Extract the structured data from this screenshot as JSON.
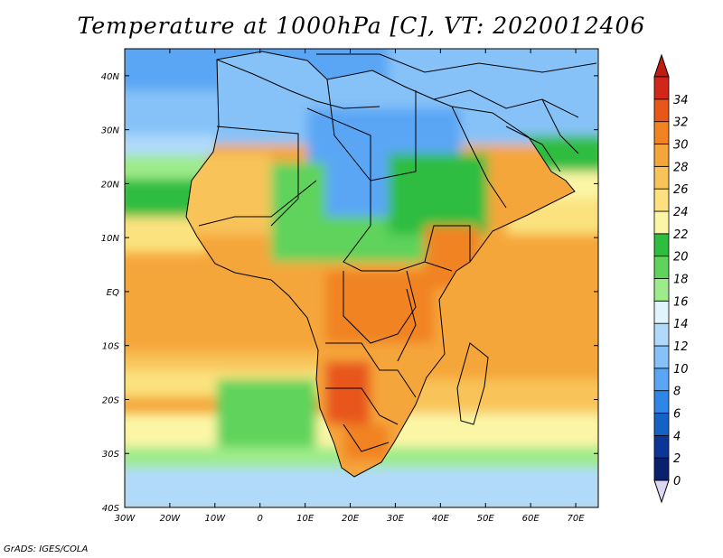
{
  "title": "Temperature at 1000hPa [C], VT: 2020012406",
  "credit": "GrADS: IGES/COLA",
  "map": {
    "lon_range": [
      -30,
      75
    ],
    "lat_range": [
      -40,
      45
    ],
    "lon_ticks": [
      {
        "value": -30,
        "label": "30W"
      },
      {
        "value": -20,
        "label": "20W"
      },
      {
        "value": -10,
        "label": "10W"
      },
      {
        "value": 0,
        "label": "0"
      },
      {
        "value": 10,
        "label": "10E"
      },
      {
        "value": 20,
        "label": "20E"
      },
      {
        "value": 30,
        "label": "30E"
      },
      {
        "value": 40,
        "label": "40E"
      },
      {
        "value": 50,
        "label": "50E"
      },
      {
        "value": 60,
        "label": "60E"
      },
      {
        "value": 70,
        "label": "70E"
      }
    ],
    "lat_ticks": [
      {
        "value": 40,
        "label": "40N"
      },
      {
        "value": 30,
        "label": "30N"
      },
      {
        "value": 20,
        "label": "20N"
      },
      {
        "value": 10,
        "label": "10N"
      },
      {
        "value": 0,
        "label": "EQ"
      },
      {
        "value": -10,
        "label": "10S"
      },
      {
        "value": -20,
        "label": "20S"
      },
      {
        "value": -30,
        "label": "30S"
      },
      {
        "value": -40,
        "label": "40S"
      }
    ]
  },
  "colorbar": {
    "levels": [
      0,
      2,
      4,
      6,
      8,
      10,
      12,
      14,
      16,
      18,
      20,
      22,
      24,
      26,
      28,
      30,
      32,
      34
    ],
    "labels": [
      "0",
      "2",
      "4",
      "6",
      "8",
      "10",
      "12",
      "14",
      "16",
      "18",
      "20",
      "22",
      "24",
      "26",
      "28",
      "30",
      "32",
      "34"
    ],
    "colors": [
      "#0a1f6e",
      "#0b3596",
      "#1561c6",
      "#2f86e6",
      "#5aa6f5",
      "#86c2f8",
      "#b1dafa",
      "#dff5fb",
      "#9deb8a",
      "#5fd35c",
      "#2ebd3f",
      "#fbf6a6",
      "#fbe27e",
      "#f8c45a",
      "#f5a63a",
      "#f18322",
      "#e8561a",
      "#d3261a"
    ],
    "under_color": "#dcd8f4",
    "over_color": "#c01d10"
  }
}
